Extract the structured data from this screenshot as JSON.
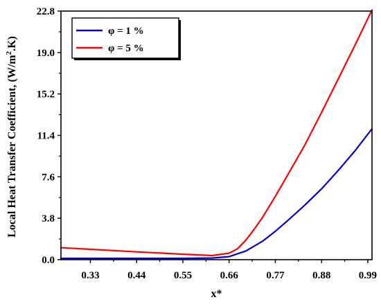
{
  "chart_data": {
    "type": "line",
    "xlabel": "x*",
    "ylabel_main": "Local Heat Transfer Coefficient, (W/m",
    "ylabel_sup": "2",
    "ylabel_tail": ".K)",
    "xlim": [
      0.26,
      1.0
    ],
    "ylim": [
      0.0,
      22.8
    ],
    "xticks": [
      0.33,
      0.44,
      0.55,
      0.66,
      0.77,
      0.88,
      0.99
    ],
    "xtick_labels": [
      "0.33",
      "0.44",
      "0.55",
      "0.66",
      "0.77",
      "0.88",
      "0.99"
    ],
    "yticks": [
      0.0,
      3.8,
      7.6,
      11.4,
      15.2,
      19.0,
      22.8
    ],
    "ytick_labels": [
      "0.0",
      "3.8",
      "7.6",
      "11.4",
      "15.2",
      "19.0",
      "22.8"
    ],
    "grid": false,
    "legend_position": "top-left",
    "series": [
      {
        "name": "φ = 1 %",
        "color": "#0000cc",
        "x": [
          0.26,
          0.33,
          0.44,
          0.55,
          0.62,
          0.66,
          0.7,
          0.74,
          0.77,
          0.8,
          0.84,
          0.88,
          0.92,
          0.96,
          1.0
        ],
        "y": [
          0.12,
          0.12,
          0.12,
          0.12,
          0.15,
          0.28,
          0.8,
          1.7,
          2.6,
          3.6,
          5.0,
          6.5,
          8.2,
          10.0,
          12.0
        ]
      },
      {
        "name": "φ = 5 %",
        "color": "#ff0000",
        "x": [
          0.26,
          0.33,
          0.44,
          0.55,
          0.62,
          0.66,
          0.68,
          0.7,
          0.72,
          0.74,
          0.77,
          0.8,
          0.84,
          0.88,
          0.92,
          0.96,
          1.0
        ],
        "y": [
          1.1,
          0.95,
          0.72,
          0.5,
          0.38,
          0.6,
          1.0,
          1.8,
          2.8,
          3.9,
          5.8,
          7.8,
          10.5,
          13.5,
          16.6,
          19.7,
          22.9
        ]
      }
    ]
  }
}
